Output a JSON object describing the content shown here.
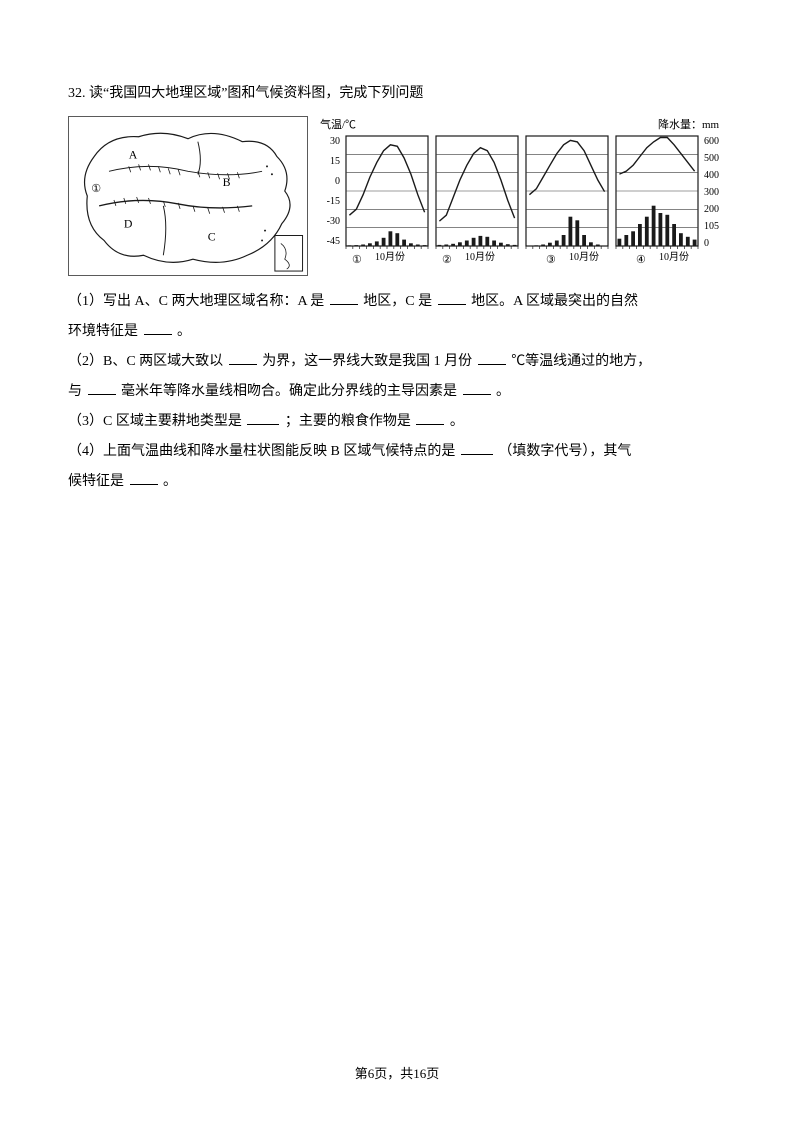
{
  "question": {
    "number": "32.",
    "prompt": "读“我国四大地理区域”图和气候资料图，完成下列问题",
    "q1": "（1）写出 A、C 两大地理区域名称：A 是 ",
    "q1_mid1": " 地区，C 是 ",
    "q1_mid2": " 地区。A 区域最突出的自然",
    "q1_line2": "环境特征是 ",
    "q1_end": " 。",
    "q2": "（2）B、C 两区域大致以 ",
    "q2_mid1": " 为界，这一界线大致是我国 1 月份 ",
    "q2_mid2": " ℃等温线通过的地方，",
    "q2_line2": "与 ",
    "q2_mid3": " 毫米年等降水量线相吻合。确定此分界线的主导因素是 ",
    "q2_end": " 。",
    "q3": "（3）C 区域主要耕地类型是 ",
    "q3_mid": " ；主要的粮食作物是 ",
    "q3_end": " 。",
    "q4": "（4）上面气温曲线和降水量柱状图能反映 B 区域气候特点的是 ",
    "q4_mid": " （填数字代号），其气",
    "q4_line2": "候特征是 ",
    "q4_end": " 。"
  },
  "map": {
    "labels": {
      "A": "A",
      "B": "B",
      "C": "C",
      "D": "D",
      "one": "①"
    },
    "stroke": "#1a1a1a",
    "fill": "#ffffff"
  },
  "charts": {
    "left_axis_title": "气温/℃",
    "right_axis_title": "降水量：mm",
    "x_label": "10月份",
    "circles": [
      "①",
      "②",
      "③",
      "④"
    ],
    "temp_ticks": [
      "30",
      "15",
      "0",
      "-15",
      "-30",
      "-45"
    ],
    "precip_ticks": [
      "600",
      "500",
      "400",
      "300",
      "200",
      "105",
      "0"
    ],
    "panel_bg": "#ffffff",
    "stroke": "#1a1a1a",
    "grid": "#3a3a3a",
    "data": {
      "panel1": {
        "temp": [
          -24,
          -20,
          -10,
          2,
          12,
          20,
          24,
          23,
          15,
          4,
          -10,
          -22
        ],
        "precip": [
          4,
          5,
          8,
          15,
          25,
          45,
          80,
          70,
          35,
          15,
          8,
          5
        ]
      },
      "panel2": {
        "temp": [
          -28,
          -24,
          -12,
          0,
          10,
          18,
          22,
          20,
          12,
          0,
          -14,
          -26
        ],
        "precip": [
          6,
          8,
          12,
          20,
          30,
          45,
          55,
          50,
          30,
          18,
          10,
          6
        ]
      },
      "panel3": {
        "temp": [
          -10,
          -6,
          2,
          10,
          18,
          24,
          27,
          26,
          20,
          10,
          0,
          -8
        ],
        "precip": [
          3,
          4,
          8,
          18,
          30,
          60,
          160,
          140,
          60,
          20,
          8,
          3
        ]
      },
      "panel4": {
        "temp": [
          4,
          6,
          10,
          16,
          22,
          26,
          29,
          29,
          24,
          18,
          12,
          6
        ],
        "precip": [
          40,
          60,
          80,
          120,
          160,
          220,
          180,
          170,
          120,
          70,
          50,
          35
        ]
      }
    },
    "fontsize_axis": 10,
    "fontsize_label": 11
  },
  "footer": "第6页，共16页",
  "colors": {
    "text": "#000000",
    "bg": "#ffffff"
  }
}
